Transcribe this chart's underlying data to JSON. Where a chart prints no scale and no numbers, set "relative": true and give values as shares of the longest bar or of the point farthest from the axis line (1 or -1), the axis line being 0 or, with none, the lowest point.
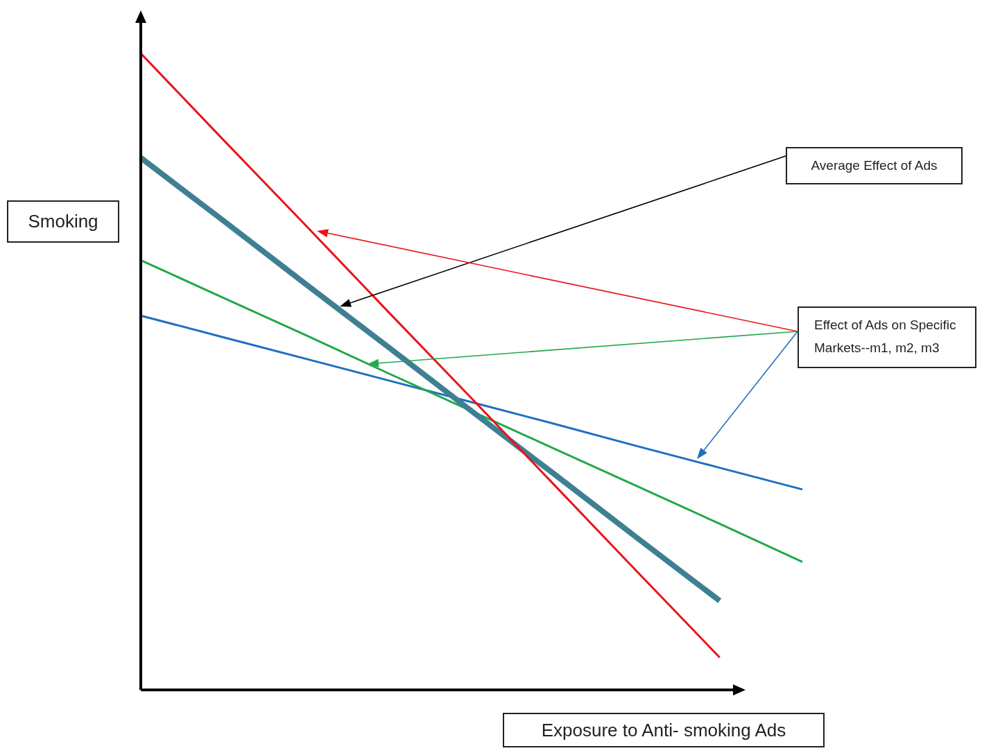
{
  "chart_data": {
    "type": "line",
    "relative": true,
    "xlabel": "Exposure to Anti- smoking Ads",
    "ylabel": "Smoking",
    "annotations": [
      "Average Effect of Ads",
      "Effect of Ads on Specific Markets--m1, m2, m3"
    ],
    "marker": "none",
    "line_style": "solid",
    "categories": [
      null,
      null,
      null,
      null,
      null,
      null,
      null,
      null,
      null
    ],
    "series": [
      {
        "color": "#e8141a",
        "values": [
          1.0,
          0.864,
          0.729,
          0.593,
          0.458,
          0.322,
          0.186,
          0.051,
          null
        ]
      },
      {
        "color": "#3f7f93",
        "values": [
          0.836,
          0.737,
          0.637,
          0.538,
          0.438,
          0.339,
          0.239,
          0.14,
          null
        ]
      },
      {
        "color": "#22a84a",
        "values": [
          0.675,
          0.616,
          0.557,
          0.497,
          0.438,
          0.379,
          0.32,
          0.261,
          0.201
        ]
      },
      {
        "color": "#1f6fbf",
        "values": [
          0.588,
          0.554,
          0.52,
          0.486,
          0.452,
          0.418,
          0.383,
          0.349,
          0.315
        ]
      }
    ]
  }
}
